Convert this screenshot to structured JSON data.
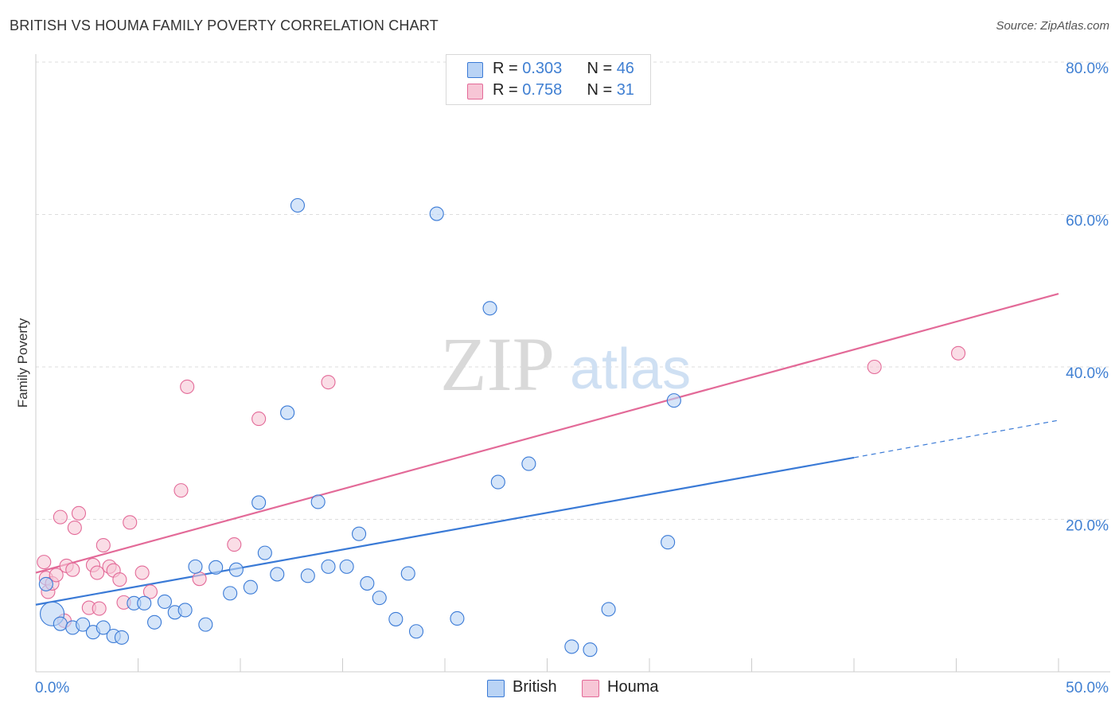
{
  "header": {
    "title": "BRITISH VS HOUMA FAMILY POVERTY CORRELATION CHART",
    "source": "Source: ZipAtlas.com"
  },
  "watermark": {
    "zip": "ZIP",
    "atlas": "atlas"
  },
  "colors": {
    "british": "#3a7ad6",
    "british_fill": "#b9d3f5",
    "houma": "#e36a98",
    "houma_fill": "#f7c6d6",
    "tick_label": "#3f7fd2",
    "grid": "#dddddd"
  },
  "legend": {
    "rows": [
      {
        "r_label": "R = ",
        "r_value": "0.303",
        "n_label": "N = ",
        "n_value": "46"
      },
      {
        "r_label": "R = ",
        "r_value": "0.758",
        "n_label": "N = ",
        "n_value": "31"
      }
    ]
  },
  "chart_data": {
    "type": "scatter",
    "title": "BRITISH VS HOUMA FAMILY POVERTY CORRELATION CHART",
    "xlabel": "",
    "ylabel": "Family Poverty",
    "xlim": [
      0,
      50
    ],
    "ylim": [
      0,
      80
    ],
    "x_tick_labels": [
      "0.0%",
      "50.0%"
    ],
    "y_ticks": [
      20,
      40,
      60,
      80
    ],
    "y_tick_labels": [
      "20.0%",
      "40.0%",
      "60.0%",
      "80.0%"
    ],
    "grid": true,
    "legend_position": "top-center",
    "series": [
      {
        "name": "British",
        "r": 0.303,
        "n": 46,
        "trend": {
          "x0": 0,
          "y0": 8.8,
          "x1": 40,
          "y1": 28.1,
          "dashed_to_x": 50,
          "dashed_y": 33.0
        },
        "points": [
          [
            0.5,
            11.5
          ],
          [
            0.8,
            7.6
          ],
          [
            1.2,
            6.3
          ],
          [
            1.8,
            5.8
          ],
          [
            2.3,
            6.2
          ],
          [
            2.8,
            5.2
          ],
          [
            3.3,
            5.8
          ],
          [
            3.8,
            4.7
          ],
          [
            4.2,
            4.5
          ],
          [
            4.8,
            9.0
          ],
          [
            5.3,
            9.0
          ],
          [
            5.8,
            6.5
          ],
          [
            6.3,
            9.2
          ],
          [
            6.8,
            7.8
          ],
          [
            7.3,
            8.1
          ],
          [
            7.8,
            13.8
          ],
          [
            8.3,
            6.2
          ],
          [
            8.8,
            13.7
          ],
          [
            9.5,
            10.3
          ],
          [
            9.8,
            13.4
          ],
          [
            10.5,
            11.1
          ],
          [
            10.9,
            22.2
          ],
          [
            11.2,
            15.6
          ],
          [
            11.8,
            12.8
          ],
          [
            12.3,
            34.0
          ],
          [
            12.8,
            61.2
          ],
          [
            13.3,
            12.6
          ],
          [
            13.8,
            22.3
          ],
          [
            14.3,
            13.8
          ],
          [
            15.2,
            13.8
          ],
          [
            15.8,
            18.1
          ],
          [
            16.2,
            11.6
          ],
          [
            16.8,
            9.7
          ],
          [
            17.6,
            6.9
          ],
          [
            18.2,
            12.9
          ],
          [
            18.6,
            5.3
          ],
          [
            19.6,
            60.1
          ],
          [
            20.6,
            7.0
          ],
          [
            22.2,
            47.7
          ],
          [
            22.6,
            24.9
          ],
          [
            24.1,
            27.3
          ],
          [
            26.2,
            3.3
          ],
          [
            27.1,
            2.9
          ],
          [
            28.0,
            8.2
          ],
          [
            30.9,
            17.0
          ],
          [
            31.2,
            35.6
          ]
        ],
        "sizes": [
          1,
          2,
          1,
          1,
          1,
          1,
          1,
          1,
          1,
          1,
          1,
          1,
          1,
          1,
          1,
          1,
          1,
          1,
          1,
          1,
          1,
          1,
          1,
          1,
          1,
          1,
          1,
          1,
          1,
          1,
          1,
          1,
          1,
          1,
          1,
          1,
          1,
          1,
          1,
          1,
          1,
          1,
          1,
          1,
          1,
          1
        ]
      },
      {
        "name": "Houma",
        "r": 0.758,
        "n": 31,
        "trend": {
          "x0": 0,
          "y0": 13.0,
          "x1": 50,
          "y1": 49.6
        },
        "points": [
          [
            0.4,
            14.4
          ],
          [
            0.5,
            12.3
          ],
          [
            0.6,
            10.5
          ],
          [
            0.8,
            11.6
          ],
          [
            1.0,
            12.7
          ],
          [
            1.2,
            20.3
          ],
          [
            1.4,
            6.7
          ],
          [
            1.5,
            13.9
          ],
          [
            1.8,
            13.4
          ],
          [
            1.9,
            18.9
          ],
          [
            2.1,
            20.8
          ],
          [
            2.6,
            8.4
          ],
          [
            2.8,
            14.0
          ],
          [
            3.0,
            13.0
          ],
          [
            3.1,
            8.3
          ],
          [
            3.3,
            16.6
          ],
          [
            3.6,
            13.8
          ],
          [
            3.8,
            13.3
          ],
          [
            4.1,
            12.1
          ],
          [
            4.3,
            9.1
          ],
          [
            4.6,
            19.6
          ],
          [
            5.2,
            13.0
          ],
          [
            5.6,
            10.5
          ],
          [
            7.1,
            23.8
          ],
          [
            7.4,
            37.4
          ],
          [
            8.0,
            12.2
          ],
          [
            9.7,
            16.7
          ],
          [
            10.9,
            33.2
          ],
          [
            14.3,
            38.0
          ],
          [
            41.0,
            40.0
          ],
          [
            45.1,
            41.8
          ]
        ]
      }
    ]
  },
  "bottom_legend": {
    "items": [
      "British",
      "Houma"
    ]
  }
}
